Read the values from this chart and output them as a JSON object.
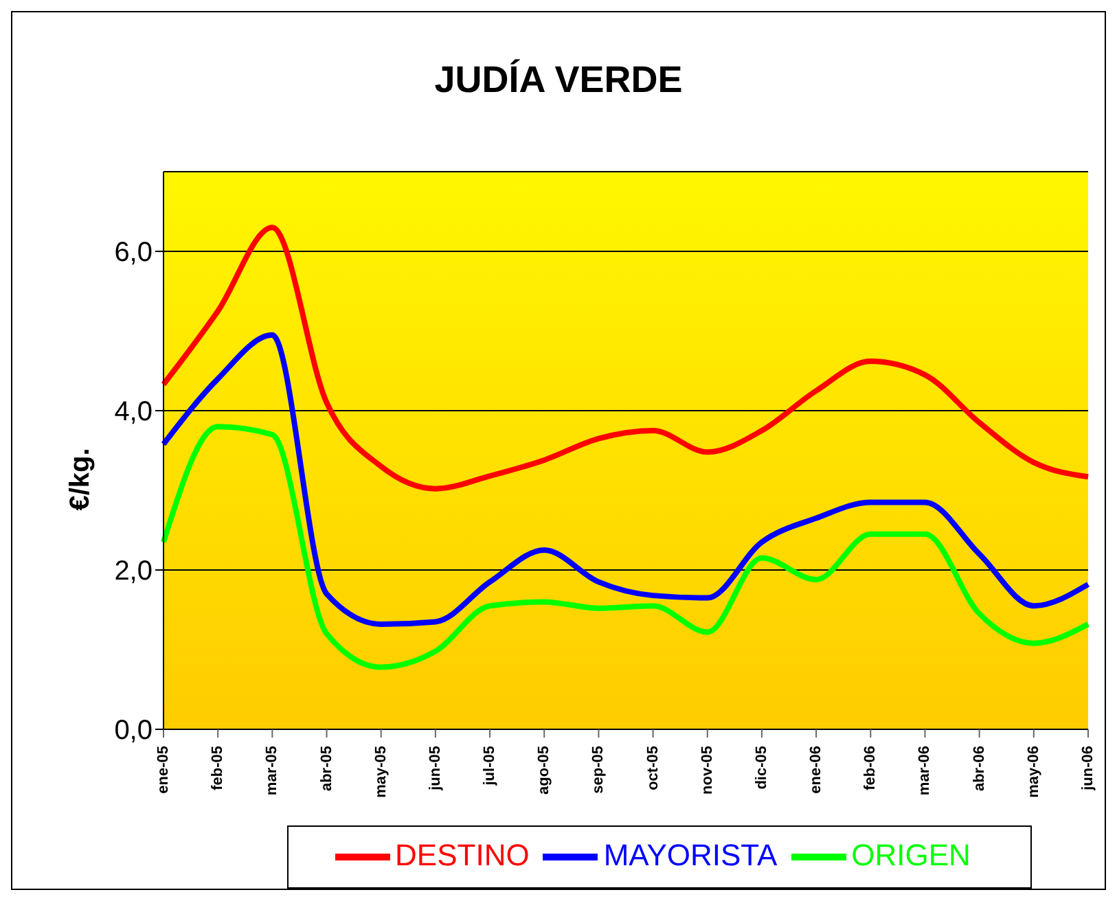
{
  "chart_data": {
    "type": "line",
    "title": "JUDÍA VERDE",
    "ylabel": "€/kg.",
    "categories": [
      "ene-05",
      "feb-05",
      "mar-05",
      "abr-05",
      "may-05",
      "jun-05",
      "jul-05",
      "ago-05",
      "sep-05",
      "oct-05",
      "nov-05",
      "dic-05",
      "ene-06",
      "feb-06",
      "mar-06",
      "abr-06",
      "may-06",
      "jun-06"
    ],
    "series": [
      {
        "name": "ORIGEN",
        "color": "#00ff00",
        "values": [
          2.35,
          3.8,
          3.7,
          1.2,
          0.78,
          0.98,
          1.55,
          1.6,
          1.52,
          1.55,
          1.22,
          2.15,
          1.88,
          2.45,
          2.45,
          1.45,
          1.08,
          1.32
        ]
      },
      {
        "name": "MAYORISTA",
        "color": "#0000ff",
        "values": [
          3.58,
          4.4,
          4.95,
          1.7,
          1.32,
          1.35,
          1.85,
          2.25,
          1.85,
          1.68,
          1.65,
          2.35,
          2.65,
          2.85,
          2.85,
          2.2,
          1.55,
          1.82
        ]
      },
      {
        "name": "DESTINO",
        "color": "#ff0000",
        "values": [
          4.33,
          5.25,
          6.3,
          4.1,
          3.3,
          3.02,
          3.18,
          3.38,
          3.65,
          3.75,
          3.48,
          3.75,
          4.25,
          4.62,
          4.45,
          3.85,
          3.35,
          3.17
        ]
      }
    ],
    "ylim": [
      0,
      7
    ],
    "yticks": [
      {
        "value": 0,
        "label": "0,0"
      },
      {
        "value": 2,
        "label": "2,0"
      },
      {
        "value": 4,
        "label": "4,0"
      },
      {
        "value": 6,
        "label": "6,0"
      }
    ],
    "grid": "y",
    "legend": "bottom",
    "marker": "none",
    "line_style": "solid"
  }
}
